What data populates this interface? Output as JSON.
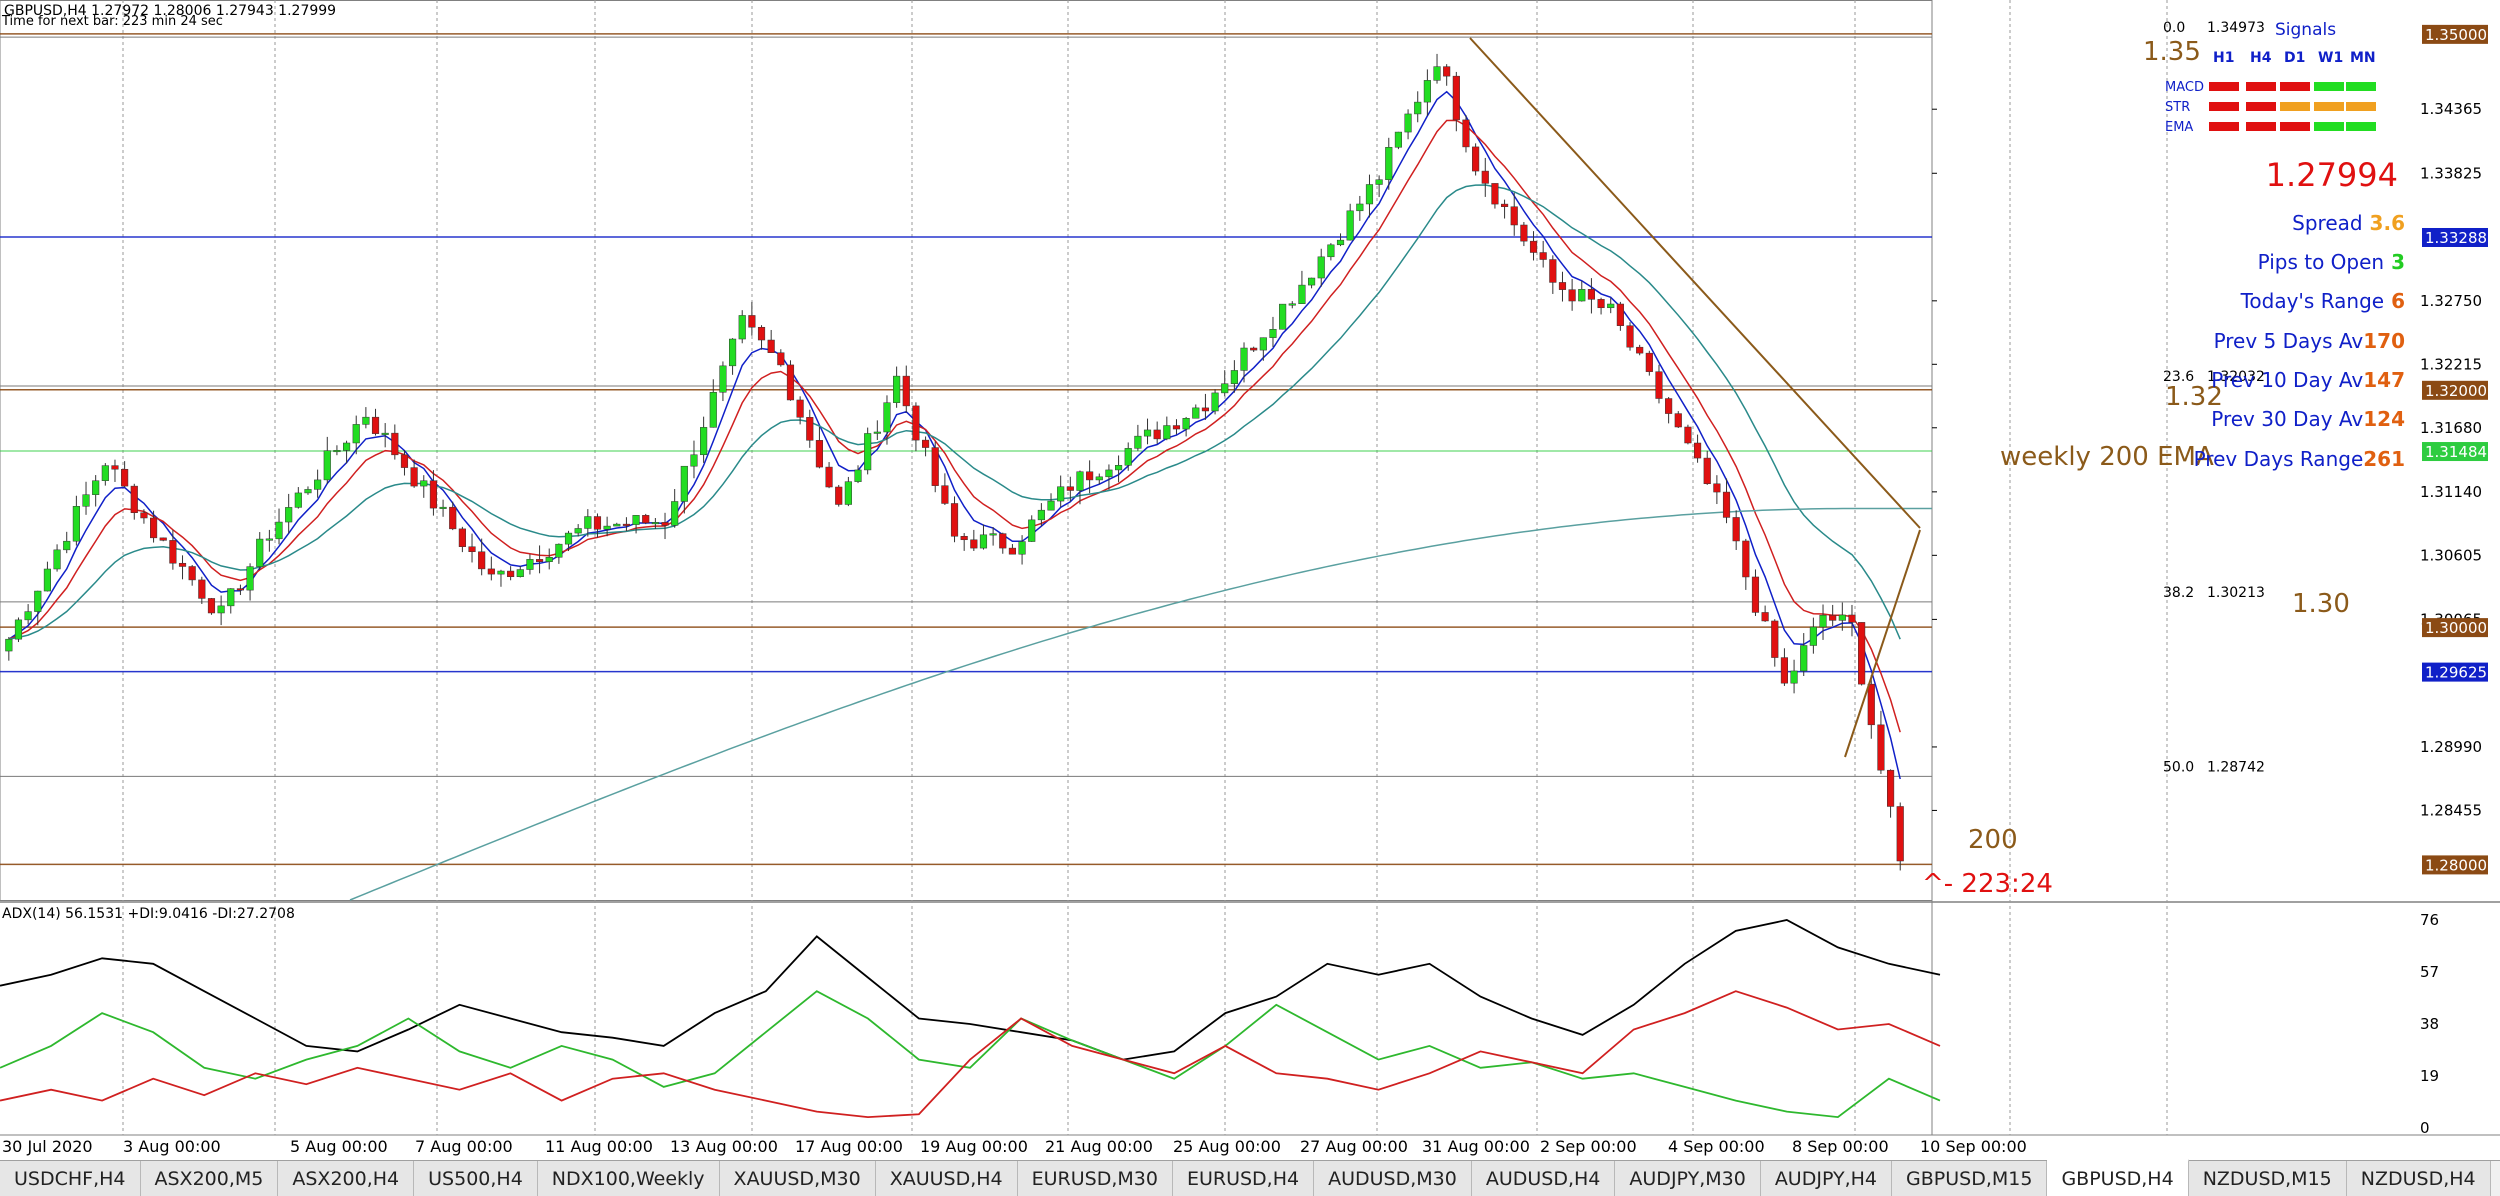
{
  "header": {
    "symbol_line": "GBPUSD,H4  1.27972 1.28006 1.27943 1.27999",
    "timer_line": "Time for next bar: 223 min 24 sec"
  },
  "price_axis": {
    "ticks": [
      "1.34365",
      "1.33825",
      "1.32750",
      "1.32215",
      "1.31680",
      "1.31140",
      "1.30605",
      "1.30065",
      "1.28990",
      "1.28455"
    ],
    "tags": [
      {
        "text": "1.35000",
        "color": "#8b4a14",
        "price": 1.35
      },
      {
        "text": "1.33288",
        "color": "#1020c8",
        "price": 1.33288
      },
      {
        "text": "1.32000",
        "color": "#8b4a14",
        "price": 1.32
      },
      {
        "text": "1.31484",
        "color": "#2ecc40",
        "price": 1.31484
      },
      {
        "text": "1.30000",
        "color": "#8b4a14",
        "price": 1.3
      },
      {
        "text": "1.29625",
        "color": "#1020c8",
        "price": 1.29625
      },
      {
        "text": "1.28000",
        "color": "#8b4a14",
        "price": 1.28
      }
    ]
  },
  "fib_levels": [
    {
      "pct": "0.0",
      "price_text": "1.34973",
      "price": 1.34973
    },
    {
      "pct": "23.6",
      "price_text": "1.32032",
      "price": 1.32032
    },
    {
      "pct": "38.2",
      "price_text": "1.30213",
      "price": 1.30213
    },
    {
      "pct": "50.0",
      "price_text": "1.28742",
      "price": 1.28742
    }
  ],
  "level_labels": [
    {
      "text": "1.35",
      "price": 1.35
    },
    {
      "text": "1.32",
      "price": 1.32
    },
    {
      "text": "1.30",
      "price": 1.3
    },
    {
      "text": "weekly 200 EMA",
      "price": 1.31484
    },
    {
      "text": "200",
      "price": 1.28
    }
  ],
  "countdown": "^- 223:24",
  "signals": {
    "title": "Signals",
    "columns": [
      "H1",
      "H4",
      "D1",
      "W1",
      "MN"
    ],
    "rows": [
      {
        "name": "MACD",
        "cells": [
          "#e01010",
          "#e01010",
          "#e01010",
          "#22dd22",
          "#22dd22"
        ]
      },
      {
        "name": "STR",
        "cells": [
          "#e01010",
          "#e01010",
          "#f0a020",
          "#f0a020",
          "#f0a020"
        ]
      },
      {
        "name": "EMA",
        "cells": [
          "#e01010",
          "#e01010",
          "#e01010",
          "#22dd22",
          "#22dd22"
        ]
      }
    ]
  },
  "info": {
    "current_price": "1.27994",
    "rows": [
      {
        "label": "Spread",
        "value": "3.6",
        "value_color": "#f0a020"
      },
      {
        "label": "Pips to Open",
        "value": "3",
        "value_color": "#22cc22"
      },
      {
        "label": "Today's Range",
        "value": "6",
        "value_color": "#e06010"
      },
      {
        "label": "Prev 5 Days Av",
        "value": "170",
        "value_color": "#e06010"
      },
      {
        "label": "Prev 10 Day Av",
        "value": "147",
        "value_color": "#e06010"
      },
      {
        "label": "Prev 30 Day Av",
        "value": "124",
        "value_color": "#e06010"
      },
      {
        "label": "Prev Days Range",
        "value": "261",
        "value_color": "#e06010"
      }
    ]
  },
  "adx": {
    "label": "ADX(14) 56.1531 +DI:9.0416 -DI:27.2708",
    "axis": [
      "76",
      "57",
      "38",
      "19",
      "0"
    ]
  },
  "time_axis": [
    "30 Jul 2020",
    "3 Aug 00:00",
    "5 Aug 00:00",
    "7 Aug 00:00",
    "11 Aug 00:00",
    "13 Aug 00:00",
    "17 Aug 00:00",
    "19 Aug 00:00",
    "21 Aug 00:00",
    "25 Aug 00:00",
    "27 Aug 00:00",
    "31 Aug 00:00",
    "2 Sep 00:00",
    "4 Sep 00:00",
    "8 Sep 00:00",
    "10 Sep 00:00"
  ],
  "chart_data": {
    "type": "candlestick",
    "symbol": "GBPUSD",
    "timeframe": "H4",
    "ylim": [
      1.277,
      1.351
    ],
    "key_points": [
      {
        "bar": 0,
        "close": 1.299
      },
      {
        "bar": 10,
        "close": 1.314
      },
      {
        "bar": 15,
        "close": 1.308
      },
      {
        "bar": 22,
        "close": 1.301
      },
      {
        "bar": 27,
        "close": 1.308
      },
      {
        "bar": 37,
        "close": 1.318
      },
      {
        "bar": 44,
        "close": 1.3105
      },
      {
        "bar": 50,
        "close": 1.304
      },
      {
        "bar": 60,
        "close": 1.3085
      },
      {
        "bar": 68,
        "close": 1.309
      },
      {
        "bar": 76,
        "close": 1.3255
      },
      {
        "bar": 80,
        "close": 1.322
      },
      {
        "bar": 86,
        "close": 1.31
      },
      {
        "bar": 92,
        "close": 1.321
      },
      {
        "bar": 98,
        "close": 1.3075
      },
      {
        "bar": 104,
        "close": 1.307
      },
      {
        "bar": 110,
        "close": 1.312
      },
      {
        "bar": 116,
        "close": 1.315
      },
      {
        "bar": 124,
        "close": 1.319
      },
      {
        "bar": 134,
        "close": 1.329
      },
      {
        "bar": 142,
        "close": 1.338
      },
      {
        "bar": 148,
        "close": 1.348
      },
      {
        "bar": 152,
        "close": 1.339
      },
      {
        "bar": 160,
        "close": 1.329
      },
      {
        "bar": 166,
        "close": 1.3265
      },
      {
        "bar": 172,
        "close": 1.318
      },
      {
        "bar": 178,
        "close": 1.309
      },
      {
        "bar": 184,
        "close": 1.295
      },
      {
        "bar": 188,
        "close": 1.301
      },
      {
        "bar": 191,
        "close": 1.3
      },
      {
        "bar": 196,
        "close": 1.28
      }
    ],
    "adx_lines": {
      "adx": [
        52,
        56,
        62,
        60,
        50,
        40,
        30,
        28,
        36,
        45,
        40,
        35,
        33,
        30,
        42,
        50,
        70,
        55,
        40,
        38,
        35,
        32,
        25,
        28,
        42,
        48,
        60,
        56,
        60,
        48,
        40,
        34,
        45,
        60,
        72,
        76,
        66,
        60,
        56
      ],
      "plus_di": [
        22,
        30,
        42,
        35,
        22,
        18,
        25,
        30,
        40,
        28,
        22,
        30,
        25,
        15,
        20,
        35,
        50,
        40,
        25,
        22,
        40,
        32,
        25,
        18,
        30,
        45,
        35,
        25,
        30,
        22,
        24,
        18,
        20,
        15,
        10,
        6,
        4,
        18,
        10
      ],
      "minus_di": [
        10,
        14,
        10,
        18,
        12,
        20,
        16,
        22,
        18,
        14,
        20,
        10,
        18,
        20,
        14,
        10,
        6,
        4,
        5,
        25,
        40,
        30,
        25,
        20,
        30,
        20,
        18,
        14,
        20,
        28,
        24,
        20,
        36,
        42,
        50,
        44,
        36,
        38,
        30
      ]
    }
  },
  "tabs": [
    "USDCHF,H4",
    "ASX200,M5",
    "ASX200,H4",
    "US500,H4",
    "NDX100,Weekly",
    "XAUUSD,M30",
    "XAUUSD,H4",
    "EURUSD,M30",
    "EURUSD,H4",
    "AUDUSD,M30",
    "AUDUSD,H4",
    "AUDJPY,M30",
    "AUDJPY,H4",
    "GBPUSD,M15",
    "GBPUSD,H4",
    "NZDUSD,M15",
    "NZDUSD,H4"
  ],
  "active_tab": "GBPUSD,H4"
}
